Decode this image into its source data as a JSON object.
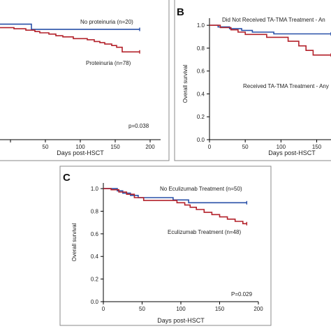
{
  "chart_data": [
    {
      "panel": "",
      "type": "line",
      "xlabel": "Days post-HSCT",
      "ylabel": "",
      "xlim": [
        -15,
        215
      ],
      "ylim": [
        0,
        1.04
      ],
      "xticks": [
        0,
        50,
        100,
        150,
        200
      ],
      "xtick_labels": [
        "",
        "50",
        "100",
        "150",
        "200"
      ],
      "yticks": [],
      "p_value": "p=0.038",
      "series": [
        {
          "name": "No proteinuria (n=20)",
          "color": "#2950a8",
          "x": [
            -15,
            30,
            30,
            185
          ],
          "y": [
            1.0,
            1.0,
            0.955,
            0.955
          ]
        },
        {
          "name": "Proteinuria (n=78)",
          "color": "#b3212a",
          "x": [
            -15,
            5,
            5,
            22,
            22,
            35,
            35,
            42,
            42,
            55,
            55,
            65,
            65,
            75,
            75,
            90,
            90,
            110,
            110,
            120,
            120,
            128,
            128,
            135,
            135,
            145,
            145,
            152,
            152,
            160,
            160,
            185
          ],
          "y": [
            0.97,
            0.97,
            0.96,
            0.96,
            0.948,
            0.948,
            0.936,
            0.936,
            0.925,
            0.925,
            0.914,
            0.914,
            0.9,
            0.9,
            0.89,
            0.89,
            0.875,
            0.875,
            0.865,
            0.865,
            0.85,
            0.85,
            0.84,
            0.84,
            0.828,
            0.828,
            0.815,
            0.815,
            0.8,
            0.8,
            0.76,
            0.76
          ]
        }
      ]
    },
    {
      "panel": "B",
      "type": "line",
      "xlabel": "Days post-HSCT",
      "ylabel": "Overall survival",
      "xlim": [
        0,
        170
      ],
      "ylim": [
        0,
        1.05
      ],
      "xticks": [
        0,
        50,
        100,
        150
      ],
      "xtick_labels": [
        "0",
        "50",
        "100",
        "150"
      ],
      "yticks": [
        0.0,
        0.2,
        0.4,
        0.6,
        0.8,
        1.0
      ],
      "ytick_labels": [
        "0.0",
        "0.2",
        "0.4",
        "0.6",
        "0.8",
        "1.0"
      ],
      "series": [
        {
          "name": "Did Not Received TA-TMA Treatment - An",
          "color": "#2950a8",
          "x": [
            0,
            12,
            12,
            28,
            28,
            45,
            45,
            60,
            60,
            90,
            90,
            170
          ],
          "y": [
            1.0,
            1.0,
            0.985,
            0.985,
            0.97,
            0.97,
            0.955,
            0.955,
            0.94,
            0.94,
            0.925,
            0.925
          ]
        },
        {
          "name": "Received TA-TMA Treatment - Any",
          "color": "#b3212a",
          "x": [
            0,
            15,
            15,
            30,
            30,
            40,
            40,
            50,
            50,
            80,
            80,
            110,
            110,
            125,
            125,
            135,
            135,
            145,
            145,
            170
          ],
          "y": [
            1.0,
            1.0,
            0.98,
            0.98,
            0.96,
            0.96,
            0.94,
            0.94,
            0.92,
            0.92,
            0.895,
            0.895,
            0.86,
            0.86,
            0.82,
            0.82,
            0.78,
            0.78,
            0.74,
            0.74
          ]
        }
      ]
    },
    {
      "panel": "C",
      "type": "line",
      "xlabel": "Days post-HSCT",
      "ylabel": "Overall survival",
      "xlim": [
        0,
        200
      ],
      "ylim": [
        0,
        1.05
      ],
      "xticks": [
        0,
        50,
        100,
        150,
        200
      ],
      "xtick_labels": [
        "0",
        "50",
        "100",
        "150",
        "200"
      ],
      "yticks": [
        0.0,
        0.2,
        0.4,
        0.6,
        0.8,
        1.0
      ],
      "ytick_labels": [
        "0.0",
        "0.2",
        "0.4",
        "0.6",
        "0.8",
        "1.0"
      ],
      "p_value": "P=0.029",
      "series": [
        {
          "name": "No Eculizumab Treatment (n=50)",
          "color": "#2950a8",
          "x": [
            0,
            18,
            18,
            25,
            25,
            35,
            35,
            45,
            45,
            90,
            90,
            110,
            110,
            185
          ],
          "y": [
            1.0,
            1.0,
            0.98,
            0.98,
            0.96,
            0.96,
            0.94,
            0.94,
            0.92,
            0.92,
            0.9,
            0.9,
            0.875,
            0.875
          ]
        },
        {
          "name": "Eculizumab Treatment (n=48)",
          "color": "#b3212a",
          "x": [
            0,
            10,
            10,
            20,
            20,
            30,
            30,
            40,
            40,
            52,
            52,
            95,
            95,
            105,
            105,
            112,
            112,
            120,
            120,
            130,
            130,
            140,
            140,
            150,
            150,
            160,
            160,
            170,
            170,
            180,
            180,
            185
          ],
          "y": [
            1.0,
            1.0,
            0.99,
            0.99,
            0.97,
            0.97,
            0.95,
            0.95,
            0.92,
            0.92,
            0.895,
            0.895,
            0.875,
            0.875,
            0.855,
            0.855,
            0.835,
            0.835,
            0.815,
            0.815,
            0.79,
            0.79,
            0.77,
            0.77,
            0.75,
            0.75,
            0.73,
            0.73,
            0.71,
            0.71,
            0.69,
            0.69
          ]
        }
      ]
    }
  ]
}
